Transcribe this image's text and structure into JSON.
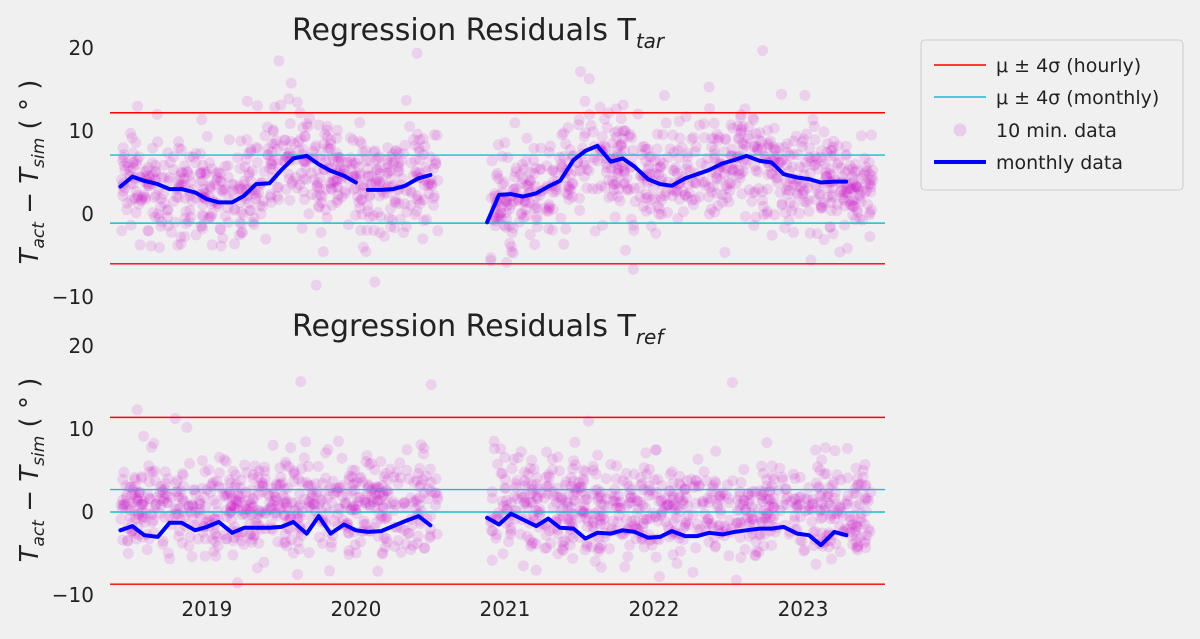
{
  "colors": {
    "background": "#f0f0f0",
    "scatter": "#cc00cc",
    "monthly": "#0000ff",
    "hourly_band": "#ff0000",
    "monthly_band": "#17becf"
  },
  "legend": {
    "position": "top-right",
    "items": [
      {
        "label": "μ ± 4σ (hourly)",
        "style": "thin-line",
        "color": "#ff0000"
      },
      {
        "label": "μ ± 4σ (monthly)",
        "style": "thin-line",
        "color": "#17becf"
      },
      {
        "label": "10 min. data",
        "style": "marker",
        "color": "#cc00cc"
      },
      {
        "label": "monthly data",
        "style": "thick-line",
        "color": "#0000ff"
      }
    ]
  },
  "chart_data": [
    {
      "type": "scatter",
      "title": "Regression Residuals T",
      "title_sub": "tar",
      "ylabel": {
        "t1": "T",
        "s1": "act",
        "minus": " − ",
        "t2": "T",
        "s2": "sim",
        "unit": " ( ° )"
      },
      "ylim": [
        -10,
        20
      ],
      "yticks": [
        20,
        10,
        0,
        -10
      ],
      "xlim": [
        2018.35,
        2023.55
      ],
      "grid": false,
      "hourly_band": [
        -6.0,
        12.2
      ],
      "monthly_band": [
        -1.1,
        7.1
      ],
      "gaps": [
        [
          2020.55,
          2020.9
        ]
      ],
      "scatter_profile": [
        [
          2018.4,
          3.5
        ],
        [
          2018.9,
          2.5
        ],
        [
          2019.2,
          2.0
        ],
        [
          2019.6,
          6.5
        ],
        [
          2020.0,
          3.5
        ],
        [
          2020.1,
          3.0
        ],
        [
          2020.55,
          4.5
        ],
        [
          2020.9,
          2.0
        ],
        [
          2021.3,
          3.5
        ],
        [
          2021.6,
          8.0
        ],
        [
          2022.0,
          4.0
        ],
        [
          2022.6,
          6.5
        ],
        [
          2023.0,
          4.0
        ],
        [
          2023.5,
          3.5
        ]
      ],
      "series": [
        {
          "name": "monthly data",
          "segments": [
            {
              "x": [
                2018.42,
                2018.5,
                2018.58,
                2018.67,
                2018.75,
                2018.83,
                2018.92,
                2019.0,
                2019.08,
                2019.17,
                2019.25,
                2019.33,
                2019.42,
                2019.5,
                2019.58,
                2019.67,
                2019.75,
                2019.83,
                2019.92
              ],
              "y": [
                3.3,
                4.5,
                4.0,
                3.6,
                3.0,
                3.0,
                2.6,
                1.8,
                1.4,
                1.4,
                2.2,
                3.6,
                3.7,
                5.3,
                6.7,
                7.0,
                6.0,
                5.2,
                4.6
              ]
            },
            {
              "x": [
                2019.92,
                2020.0
              ],
              "y": [
                4.6,
                3.8
              ]
            },
            {
              "x": [
                2020.08,
                2020.17,
                2020.25,
                2020.33,
                2020.42,
                2020.5
              ],
              "y": [
                2.9,
                2.9,
                3.0,
                3.4,
                4.3,
                4.7
              ]
            },
            {
              "x": [
                2020.88,
                2020.96,
                2021.04,
                2021.12,
                2021.21,
                2021.29,
                2021.37,
                2021.46,
                2021.54,
                2021.62,
                2021.71,
                2021.79,
                2021.87,
                2021.96,
                2022.04,
                2022.12,
                2022.21,
                2022.29,
                2022.37,
                2022.46,
                2022.54,
                2022.62,
                2022.71,
                2022.79,
                2022.87,
                2022.96,
                2023.04,
                2023.12,
                2023.21,
                2023.29
              ],
              "y": [
                -1.0,
                2.3,
                2.4,
                2.1,
                2.5,
                3.3,
                4.0,
                6.5,
                7.6,
                8.2,
                6.3,
                6.7,
                5.7,
                4.2,
                3.6,
                3.4,
                4.3,
                4.8,
                5.3,
                6.1,
                6.5,
                7.0,
                6.4,
                6.2,
                4.8,
                4.4,
                4.2,
                3.8,
                3.9,
                3.9
              ]
            }
          ]
        }
      ]
    },
    {
      "type": "scatter",
      "title": "Regression Residuals T",
      "title_sub": "ref",
      "ylabel": {
        "t1": "T",
        "s1": "act",
        "minus": " − ",
        "t2": "T",
        "s2": "sim",
        "unit": " ( ° )"
      },
      "ylim": [
        -10,
        20
      ],
      "yticks": [
        20,
        10,
        0,
        -10
      ],
      "xlim": [
        2018.35,
        2023.55
      ],
      "xticks": [
        "2019",
        "2020",
        "2021",
        "2022",
        "2023"
      ],
      "xtick_values": [
        2019.0,
        2020.0,
        2021.0,
        2022.0,
        2023.0
      ],
      "grid": false,
      "hourly_band": [
        -8.7,
        11.4
      ],
      "monthly_band": [
        0.0,
        2.7
      ],
      "gaps": [
        [
          2020.55,
          2020.9
        ]
      ],
      "scatter_profile": [
        [
          2018.4,
          0.5
        ],
        [
          2019.0,
          0.5
        ],
        [
          2019.8,
          0.6
        ],
        [
          2020.5,
          1.0
        ],
        [
          2020.9,
          0.5
        ],
        [
          2022.0,
          0.0
        ],
        [
          2023.0,
          0.2
        ],
        [
          2023.5,
          0.0
        ]
      ],
      "series": [
        {
          "name": "monthly data",
          "segments": [
            {
              "x": [
                2018.42,
                2018.5,
                2018.58,
                2018.67,
                2018.75,
                2018.83,
                2018.92,
                2019.0,
                2019.08,
                2019.17,
                2019.25,
                2019.33,
                2019.42,
                2019.5,
                2019.58,
                2019.67,
                2019.75,
                2019.83,
                2019.92,
                2020.0,
                2020.08,
                2020.17,
                2020.25,
                2020.33,
                2020.42,
                2020.5
              ],
              "y": [
                -2.2,
                -1.7,
                -2.8,
                -3.0,
                -1.3,
                -1.3,
                -2.2,
                -1.8,
                -1.2,
                -2.5,
                -1.9,
                -1.9,
                -1.9,
                -1.8,
                -1.2,
                -2.6,
                -0.5,
                -2.6,
                -1.5,
                -2.2,
                -2.4,
                -2.3,
                -1.7,
                -1.1,
                -0.5,
                -1.6
              ]
            },
            {
              "x": [
                2020.88,
                2020.96,
                2021.04,
                2021.12,
                2021.21,
                2021.29,
                2021.37,
                2021.46,
                2021.54,
                2021.62,
                2021.71,
                2021.79,
                2021.87,
                2021.96,
                2022.04,
                2022.12,
                2022.21,
                2022.29,
                2022.37,
                2022.46,
                2022.54,
                2022.62,
                2022.71,
                2022.79,
                2022.87,
                2022.96,
                2023.04,
                2023.12,
                2023.21,
                2023.29
              ],
              "y": [
                -0.7,
                -1.5,
                -0.2,
                -0.9,
                -1.7,
                -0.8,
                -1.9,
                -2.0,
                -3.2,
                -2.5,
                -2.6,
                -2.2,
                -2.4,
                -3.1,
                -3.0,
                -2.3,
                -2.9,
                -2.9,
                -2.5,
                -2.7,
                -2.4,
                -2.2,
                -2.0,
                -2.0,
                -1.8,
                -2.6,
                -2.8,
                -4.0,
                -2.4,
                -2.8
              ]
            }
          ]
        }
      ]
    }
  ]
}
